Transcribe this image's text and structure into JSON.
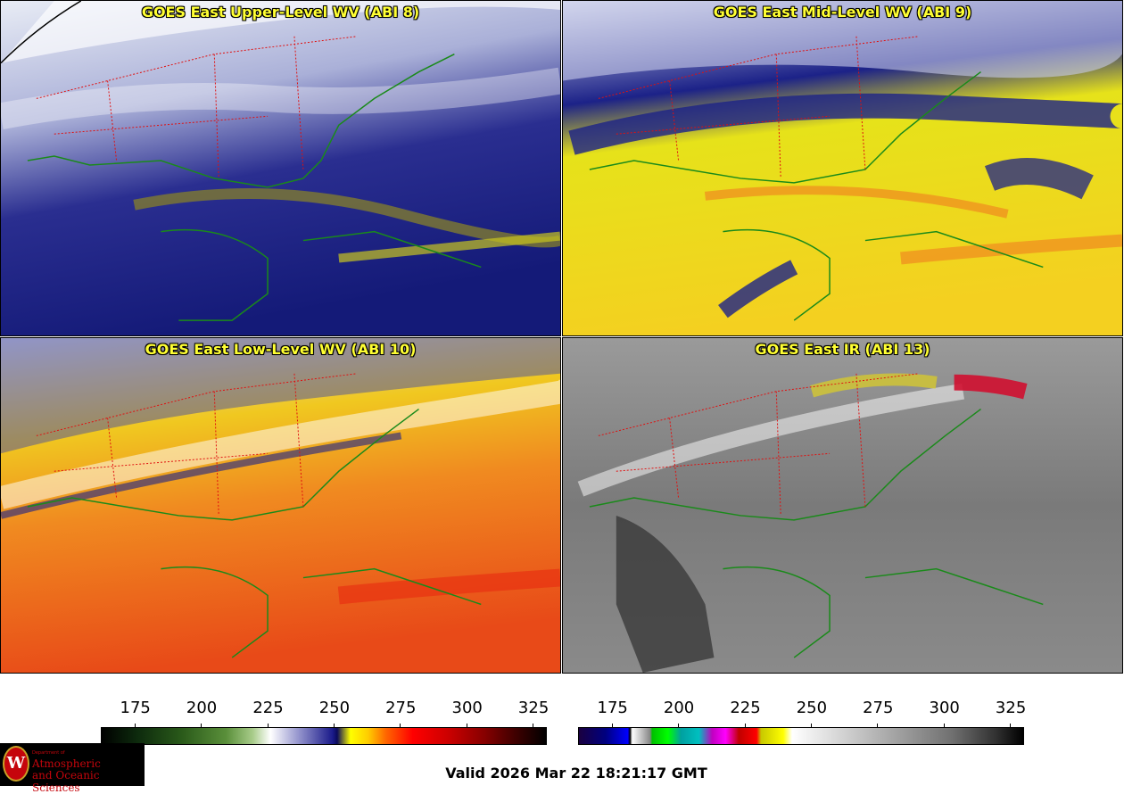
{
  "panels": [
    {
      "title": "GOES East Upper-Level WV (ABI 8)",
      "palette": "wv",
      "colors": [
        "#e8ecf5",
        "#aab0d8",
        "#2a2e90",
        "#141a78"
      ]
    },
    {
      "title": "GOES East Mid-Level WV (ABI 9)",
      "palette": "wv",
      "colors": [
        "#e0e4f2",
        "#1c2288",
        "#e6e21a",
        "#f4d020"
      ]
    },
    {
      "title": "GOES East Low-Level WV (ABI 10)",
      "palette": "wv",
      "colors": [
        "#d8dcf0",
        "#f0c820",
        "#f08a20",
        "#e84a18"
      ]
    },
    {
      "title": "GOES East IR (ABI 13)",
      "palette": "ir",
      "colors": [
        "#9a9a9a",
        "#7a7a7a",
        "#3a3a3a",
        "#d01030"
      ]
    }
  ],
  "colorbars": [
    {
      "name": "wv-colorbar",
      "min": 162,
      "max": 330,
      "ticks": [
        "175",
        "200",
        "225",
        "250",
        "275",
        "300",
        "325"
      ]
    },
    {
      "name": "ir-colorbar",
      "min": 162,
      "max": 330,
      "ticks": [
        "175",
        "200",
        "225",
        "250",
        "275",
        "300",
        "325"
      ]
    }
  ],
  "logo": {
    "small": "Department of",
    "line1": "Atmospheric",
    "line2": "and Oceanic Sciences",
    "seal": "W",
    "seal_color": "#c5050c"
  },
  "valid_time": "Valid 2026 Mar 22 18:21:17 GMT",
  "map_colors": {
    "coast": "#1a8a1a",
    "border": "#7a4a1a",
    "states": "#e01010"
  }
}
